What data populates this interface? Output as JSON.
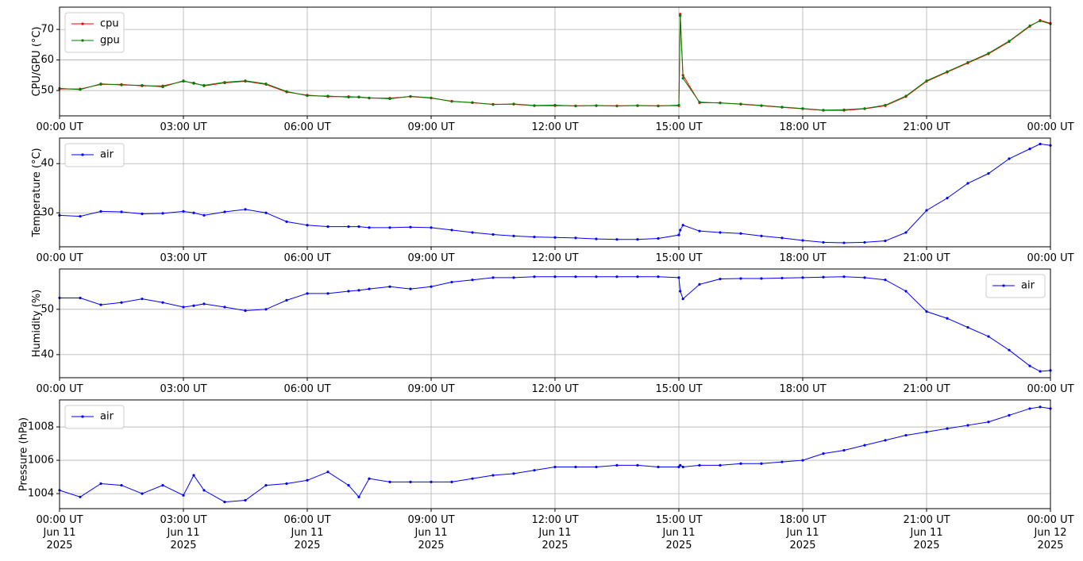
{
  "chart_data": [
    {
      "type": "line",
      "ylabel": "CPU/GPU (°C)",
      "legend": "upper left",
      "grid": true,
      "xlim": [
        "2025-06-11T00:00",
        "2025-06-12T00:00"
      ],
      "xticks": [
        {
          "value": "2025-06-11T00:00",
          "label": "00:00 UT"
        },
        {
          "value": "2025-06-11T03:00",
          "label": "03:00 UT"
        },
        {
          "value": "2025-06-11T06:00",
          "label": "06:00 UT"
        },
        {
          "value": "2025-06-11T09:00",
          "label": "09:00 UT"
        },
        {
          "value": "2025-06-11T12:00",
          "label": "12:00 UT"
        },
        {
          "value": "2025-06-11T15:00",
          "label": "15:00 UT"
        },
        {
          "value": "2025-06-11T18:00",
          "label": "18:00 UT"
        },
        {
          "value": "2025-06-11T21:00",
          "label": "21:00 UT"
        },
        {
          "value": "2025-06-12T00:00",
          "label": "00:00 UT"
        }
      ],
      "ylim": [
        41.7,
        77.3
      ],
      "yticks": [
        50,
        60,
        70
      ],
      "x": [
        "2025-06-11T00:00",
        "2025-06-11T00:30",
        "2025-06-11T01:00",
        "2025-06-11T01:30",
        "2025-06-11T02:00",
        "2025-06-11T02:30",
        "2025-06-11T03:00",
        "2025-06-11T03:15",
        "2025-06-11T03:30",
        "2025-06-11T04:00",
        "2025-06-11T04:30",
        "2025-06-11T05:00",
        "2025-06-11T05:30",
        "2025-06-11T06:00",
        "2025-06-11T06:30",
        "2025-06-11T07:00",
        "2025-06-11T07:15",
        "2025-06-11T07:30",
        "2025-06-11T08:00",
        "2025-06-11T08:30",
        "2025-06-11T09:00",
        "2025-06-11T09:30",
        "2025-06-11T10:00",
        "2025-06-11T10:30",
        "2025-06-11T11:00",
        "2025-06-11T11:30",
        "2025-06-11T12:00",
        "2025-06-11T12:30",
        "2025-06-11T13:00",
        "2025-06-11T13:30",
        "2025-06-11T14:00",
        "2025-06-11T14:30",
        "2025-06-11T15:00",
        "2025-06-11T15:02",
        "2025-06-11T15:06",
        "2025-06-11T15:30",
        "2025-06-11T16:00",
        "2025-06-11T16:30",
        "2025-06-11T17:00",
        "2025-06-11T17:30",
        "2025-06-11T18:00",
        "2025-06-11T18:30",
        "2025-06-11T19:00",
        "2025-06-11T19:30",
        "2025-06-11T20:00",
        "2025-06-11T20:30",
        "2025-06-11T21:00",
        "2025-06-11T21:30",
        "2025-06-11T22:00",
        "2025-06-11T22:30",
        "2025-06-11T23:00",
        "2025-06-11T23:30",
        "2025-06-11T23:45",
        "2025-06-12T00:00"
      ],
      "series": [
        {
          "name": "cpu",
          "color": "#ff0000",
          "values": [
            50.5,
            50.5,
            52,
            52,
            51.5,
            51.5,
            53,
            52.5,
            51.5,
            52.5,
            53,
            52,
            49.5,
            48.5,
            48,
            48,
            47.8,
            47.5,
            47.5,
            48,
            47.5,
            46.5,
            46,
            45.5,
            45.5,
            45,
            45,
            45,
            45,
            45,
            45,
            45,
            45,
            75,
            55,
            46,
            46,
            45.5,
            45,
            44.5,
            44,
            43.5,
            43.5,
            44,
            45,
            48,
            53,
            56,
            59,
            62,
            66,
            71,
            73,
            72
          ]
        },
        {
          "name": "gpu",
          "color": "#008000",
          "values": [
            50.7,
            50.3,
            52.2,
            51.8,
            51.7,
            51.2,
            53.2,
            52.3,
            51.7,
            52.7,
            53.2,
            52.2,
            49.7,
            48.3,
            48.2,
            47.8,
            47.9,
            47.6,
            47.3,
            48.1,
            47.6,
            46.4,
            46.1,
            45.4,
            45.6,
            45.1,
            45.2,
            44.9,
            45.1,
            44.9,
            45.1,
            44.9,
            45.2,
            74.5,
            54,
            46.2,
            45.9,
            45.6,
            45.1,
            44.6,
            44.1,
            43.6,
            43.7,
            44.1,
            45.2,
            48.2,
            53.2,
            56.2,
            59.2,
            62.2,
            66.2,
            71.2,
            72.8,
            71.8
          ]
        }
      ]
    },
    {
      "type": "line",
      "ylabel": "Temperature (°C)",
      "legend": "upper left",
      "grid": true,
      "xlim": [
        "2025-06-11T00:00",
        "2025-06-12T00:00"
      ],
      "xticks": [
        {
          "value": "2025-06-11T00:00",
          "label": "00:00 UT"
        },
        {
          "value": "2025-06-11T03:00",
          "label": "03:00 UT"
        },
        {
          "value": "2025-06-11T06:00",
          "label": "06:00 UT"
        },
        {
          "value": "2025-06-11T09:00",
          "label": "09:00 UT"
        },
        {
          "value": "2025-06-11T12:00",
          "label": "12:00 UT"
        },
        {
          "value": "2025-06-11T15:00",
          "label": "15:00 UT"
        },
        {
          "value": "2025-06-11T18:00",
          "label": "18:00 UT"
        },
        {
          "value": "2025-06-11T21:00",
          "label": "21:00 UT"
        },
        {
          "value": "2025-06-12T00:00",
          "label": "00:00 UT"
        }
      ],
      "ylim": [
        23.1,
        45.2
      ],
      "yticks": [
        30,
        40
      ],
      "x": [
        "2025-06-11T00:00",
        "2025-06-11T00:30",
        "2025-06-11T01:00",
        "2025-06-11T01:30",
        "2025-06-11T02:00",
        "2025-06-11T02:30",
        "2025-06-11T03:00",
        "2025-06-11T03:15",
        "2025-06-11T03:30",
        "2025-06-11T04:00",
        "2025-06-11T04:30",
        "2025-06-11T05:00",
        "2025-06-11T05:30",
        "2025-06-11T06:00",
        "2025-06-11T06:30",
        "2025-06-11T07:00",
        "2025-06-11T07:15",
        "2025-06-11T07:30",
        "2025-06-11T08:00",
        "2025-06-11T08:30",
        "2025-06-11T09:00",
        "2025-06-11T09:30",
        "2025-06-11T10:00",
        "2025-06-11T10:30",
        "2025-06-11T11:00",
        "2025-06-11T11:30",
        "2025-06-11T12:00",
        "2025-06-11T12:30",
        "2025-06-11T13:00",
        "2025-06-11T13:30",
        "2025-06-11T14:00",
        "2025-06-11T14:30",
        "2025-06-11T15:00",
        "2025-06-11T15:02",
        "2025-06-11T15:06",
        "2025-06-11T15:30",
        "2025-06-11T16:00",
        "2025-06-11T16:30",
        "2025-06-11T17:00",
        "2025-06-11T17:30",
        "2025-06-11T18:00",
        "2025-06-11T18:30",
        "2025-06-11T19:00",
        "2025-06-11T19:30",
        "2025-06-11T20:00",
        "2025-06-11T20:30",
        "2025-06-11T21:00",
        "2025-06-11T21:30",
        "2025-06-11T22:00",
        "2025-06-11T22:30",
        "2025-06-11T23:00",
        "2025-06-11T23:30",
        "2025-06-11T23:45",
        "2025-06-12T00:00"
      ],
      "series": [
        {
          "name": "air",
          "color": "#0000ff",
          "values": [
            29.5,
            29.3,
            30.3,
            30.2,
            29.8,
            29.9,
            30.3,
            30,
            29.5,
            30.2,
            30.7,
            30,
            28.2,
            27.5,
            27.2,
            27.2,
            27.2,
            27,
            27,
            27.1,
            27,
            26.5,
            26,
            25.6,
            25.3,
            25.1,
            25,
            24.9,
            24.7,
            24.6,
            24.6,
            24.8,
            25.5,
            26.5,
            27.5,
            26.3,
            26,
            25.8,
            25.3,
            24.9,
            24.4,
            24,
            23.9,
            24,
            24.3,
            26,
            30.5,
            33,
            36,
            38,
            41,
            43,
            44,
            43.7
          ]
        }
      ]
    },
    {
      "type": "line",
      "ylabel": "Humidity (%)",
      "legend": "upper right",
      "grid": true,
      "xlim": [
        "2025-06-11T00:00",
        "2025-06-12T00:00"
      ],
      "xticks": [
        {
          "value": "2025-06-11T00:00",
          "label": "00:00 UT"
        },
        {
          "value": "2025-06-11T03:00",
          "label": "03:00 UT"
        },
        {
          "value": "2025-06-11T06:00",
          "label": "06:00 UT"
        },
        {
          "value": "2025-06-11T09:00",
          "label": "09:00 UT"
        },
        {
          "value": "2025-06-11T12:00",
          "label": "12:00 UT"
        },
        {
          "value": "2025-06-11T15:00",
          "label": "15:00 UT"
        },
        {
          "value": "2025-06-11T18:00",
          "label": "18:00 UT"
        },
        {
          "value": "2025-06-11T21:00",
          "label": "21:00 UT"
        },
        {
          "value": "2025-06-12T00:00",
          "label": "00:00 UT"
        }
      ],
      "ylim": [
        34.9,
        58.9
      ],
      "yticks": [
        40,
        50
      ],
      "x": [
        "2025-06-11T00:00",
        "2025-06-11T00:30",
        "2025-06-11T01:00",
        "2025-06-11T01:30",
        "2025-06-11T02:00",
        "2025-06-11T02:30",
        "2025-06-11T03:00",
        "2025-06-11T03:15",
        "2025-06-11T03:30",
        "2025-06-11T04:00",
        "2025-06-11T04:30",
        "2025-06-11T05:00",
        "2025-06-11T05:30",
        "2025-06-11T06:00",
        "2025-06-11T06:30",
        "2025-06-11T07:00",
        "2025-06-11T07:15",
        "2025-06-11T07:30",
        "2025-06-11T08:00",
        "2025-06-11T08:30",
        "2025-06-11T09:00",
        "2025-06-11T09:30",
        "2025-06-11T10:00",
        "2025-06-11T10:30",
        "2025-06-11T11:00",
        "2025-06-11T11:30",
        "2025-06-11T12:00",
        "2025-06-11T12:30",
        "2025-06-11T13:00",
        "2025-06-11T13:30",
        "2025-06-11T14:00",
        "2025-06-11T14:30",
        "2025-06-11T15:00",
        "2025-06-11T15:02",
        "2025-06-11T15:06",
        "2025-06-11T15:30",
        "2025-06-11T16:00",
        "2025-06-11T16:30",
        "2025-06-11T17:00",
        "2025-06-11T17:30",
        "2025-06-11T18:00",
        "2025-06-11T18:30",
        "2025-06-11T19:00",
        "2025-06-11T19:30",
        "2025-06-11T20:00",
        "2025-06-11T20:30",
        "2025-06-11T21:00",
        "2025-06-11T21:30",
        "2025-06-11T22:00",
        "2025-06-11T22:30",
        "2025-06-11T23:00",
        "2025-06-11T23:30",
        "2025-06-11T23:45",
        "2025-06-12T00:00"
      ],
      "series": [
        {
          "name": "air",
          "color": "#0000ff",
          "values": [
            52.5,
            52.5,
            51,
            51.5,
            52.3,
            51.5,
            50.5,
            50.8,
            51.2,
            50.5,
            49.7,
            50,
            52,
            53.5,
            53.5,
            54,
            54.2,
            54.5,
            55,
            54.5,
            55,
            56,
            56.5,
            57,
            57,
            57.2,
            57.2,
            57.2,
            57.2,
            57.2,
            57.2,
            57.2,
            57,
            54,
            52.3,
            55.5,
            56.7,
            56.8,
            56.8,
            56.9,
            57,
            57.1,
            57.2,
            57,
            56.5,
            54,
            49.5,
            48,
            46,
            44,
            41,
            37.5,
            36.3,
            36.5
          ]
        }
      ]
    },
    {
      "type": "line",
      "ylabel": "Pressure (hPa)",
      "legend": "upper left",
      "grid": true,
      "xlim": [
        "2025-06-11T00:00",
        "2025-06-12T00:00"
      ],
      "xticks": [
        {
          "value": "2025-06-11T00:00",
          "label": "00:00 UT\nJun 11\n2025"
        },
        {
          "value": "2025-06-11T03:00",
          "label": "03:00 UT\nJun 11\n2025"
        },
        {
          "value": "2025-06-11T06:00",
          "label": "06:00 UT\nJun 11\n2025"
        },
        {
          "value": "2025-06-11T09:00",
          "label": "09:00 UT\nJun 11\n2025"
        },
        {
          "value": "2025-06-11T12:00",
          "label": "12:00 UT\nJun 11\n2025"
        },
        {
          "value": "2025-06-11T15:00",
          "label": "15:00 UT\nJun 11\n2025"
        },
        {
          "value": "2025-06-11T18:00",
          "label": "18:00 UT\nJun 11\n2025"
        },
        {
          "value": "2025-06-11T21:00",
          "label": "21:00 UT\nJun 11\n2025"
        },
        {
          "value": "2025-06-12T00:00",
          "label": "00:00 UT\nJun 12\n2025"
        }
      ],
      "ylim": [
        1003.1,
        1009.62
      ],
      "yticks": [
        1004,
        1006,
        1008
      ],
      "x": [
        "2025-06-11T00:00",
        "2025-06-11T00:30",
        "2025-06-11T01:00",
        "2025-06-11T01:30",
        "2025-06-11T02:00",
        "2025-06-11T02:30",
        "2025-06-11T03:00",
        "2025-06-11T03:15",
        "2025-06-11T03:30",
        "2025-06-11T04:00",
        "2025-06-11T04:30",
        "2025-06-11T05:00",
        "2025-06-11T05:30",
        "2025-06-11T06:00",
        "2025-06-11T06:30",
        "2025-06-11T07:00",
        "2025-06-11T07:15",
        "2025-06-11T07:30",
        "2025-06-11T08:00",
        "2025-06-11T08:30",
        "2025-06-11T09:00",
        "2025-06-11T09:30",
        "2025-06-11T10:00",
        "2025-06-11T10:30",
        "2025-06-11T11:00",
        "2025-06-11T11:30",
        "2025-06-11T12:00",
        "2025-06-11T12:30",
        "2025-06-11T13:00",
        "2025-06-11T13:30",
        "2025-06-11T14:00",
        "2025-06-11T14:30",
        "2025-06-11T15:00",
        "2025-06-11T15:02",
        "2025-06-11T15:06",
        "2025-06-11T15:30",
        "2025-06-11T16:00",
        "2025-06-11T16:30",
        "2025-06-11T17:00",
        "2025-06-11T17:30",
        "2025-06-11T18:00",
        "2025-06-11T18:30",
        "2025-06-11T19:00",
        "2025-06-11T19:30",
        "2025-06-11T20:00",
        "2025-06-11T20:30",
        "2025-06-11T21:00",
        "2025-06-11T21:30",
        "2025-06-11T22:00",
        "2025-06-11T22:30",
        "2025-06-11T23:00",
        "2025-06-11T23:30",
        "2025-06-11T23:45",
        "2025-06-12T00:00"
      ],
      "series": [
        {
          "name": "air",
          "color": "#0000ff",
          "values": [
            1004.2,
            1003.8,
            1004.6,
            1004.5,
            1004.0,
            1004.5,
            1003.9,
            1005.1,
            1004.2,
            1003.5,
            1003.6,
            1004.5,
            1004.6,
            1004.8,
            1005.3,
            1004.5,
            1003.8,
            1004.9,
            1004.7,
            1004.7,
            1004.7,
            1004.7,
            1004.9,
            1005.1,
            1005.2,
            1005.4,
            1005.6,
            1005.6,
            1005.6,
            1005.7,
            1005.7,
            1005.6,
            1005.6,
            1005.7,
            1005.6,
            1005.7,
            1005.7,
            1005.8,
            1005.8,
            1005.9,
            1006.0,
            1006.4,
            1006.6,
            1006.9,
            1007.2,
            1007.5,
            1007.7,
            1007.9,
            1008.1,
            1008.3,
            1008.7,
            1009.1,
            1009.2,
            1009.1
          ]
        }
      ]
    }
  ]
}
